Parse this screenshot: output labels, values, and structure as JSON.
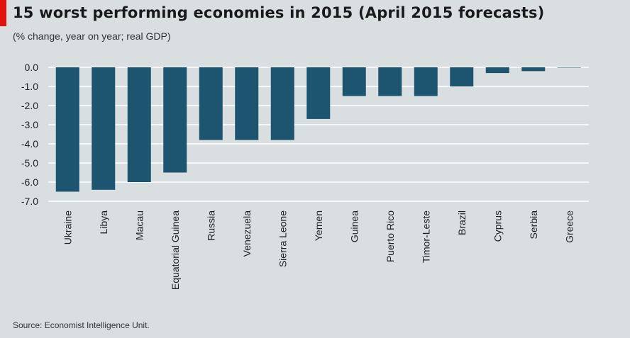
{
  "header": {
    "title": "15 worst performing  economies in 2015 (April 2015 forecasts)",
    "subtitle": "(% change, year on year; real GDP)"
  },
  "footer": {
    "source": "Source: Economist Intelligence Unit."
  },
  "colors": {
    "accent": "#e3120b",
    "bar": "#1d5470",
    "background": "#d9dfe1",
    "gridline": "#ffffff"
  },
  "chart_data": {
    "type": "bar",
    "title": "15 worst performing  economies in 2015 (April 2015 forecasts)",
    "subtitle": "(% change, year on year; real GDP)",
    "xlabel": "",
    "ylabel": "",
    "categories": [
      "Ukraine",
      "Libya",
      "Macau",
      "Equatorial Guinea",
      "Russia",
      "Venezuela",
      "Sierra Leone",
      "Yemen",
      "Guinea",
      "Puerto Rico",
      "Timor-Leste",
      "Brazil",
      "Cyprus",
      "Serbia",
      "Greece"
    ],
    "values": [
      -6.5,
      -6.4,
      -6.0,
      -5.5,
      -3.8,
      -3.8,
      -3.8,
      -2.7,
      -1.5,
      -1.5,
      -1.5,
      -1.0,
      -0.3,
      -0.2,
      0.0
    ],
    "ylim": [
      -7.0,
      0.0
    ],
    "yticks": [
      "0.0",
      "-1.0",
      "-2.0",
      "-3.0",
      "-4.0",
      "-5.0",
      "-6.0",
      "-7.0"
    ],
    "grid": true,
    "legend": "none"
  }
}
